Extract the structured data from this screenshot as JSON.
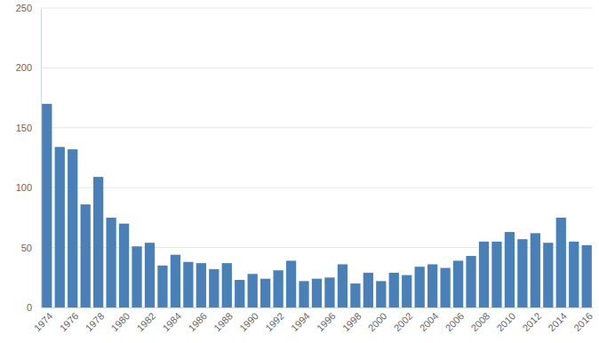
{
  "chart_data": {
    "type": "bar",
    "categories": [
      "1974",
      null,
      "1976",
      null,
      "1978",
      null,
      "1980",
      null,
      "1982",
      null,
      "1984",
      null,
      "1986",
      null,
      "1988",
      null,
      "1990",
      null,
      "1992",
      null,
      "1994",
      null,
      "1996",
      null,
      "1998",
      null,
      "2000",
      null,
      "2002",
      null,
      "2004",
      null,
      "2006",
      null,
      "2008",
      null,
      "2010",
      null,
      "2012",
      null,
      "2014",
      null,
      "2016"
    ],
    "values": [
      170,
      134,
      132,
      86,
      109,
      75,
      70,
      51,
      54,
      35,
      44,
      38,
      37,
      32,
      37,
      23,
      28,
      24,
      31,
      39,
      22,
      24,
      25,
      36,
      20,
      29,
      22,
      29,
      27,
      34,
      36,
      33,
      39,
      43,
      55,
      55,
      63,
      57,
      62,
      54,
      75,
      55,
      52
    ],
    "color": "#4a80b8",
    "ylim": [
      0,
      250
    ],
    "yticks": [
      0,
      50,
      100,
      150,
      200,
      250
    ],
    "grid": true
  }
}
